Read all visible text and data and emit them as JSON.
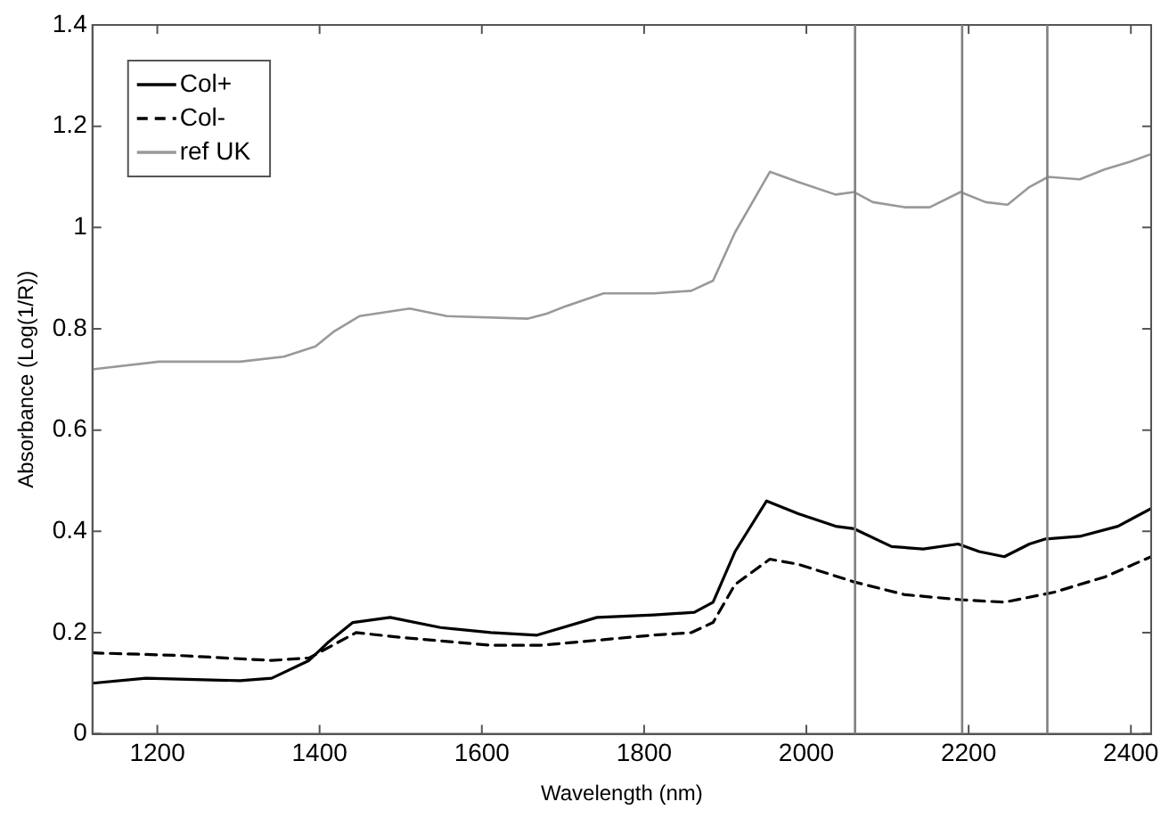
{
  "chart_data": {
    "type": "line",
    "xlabel": "Wavelength (nm)",
    "ylabel": "Absorbance (Log(1/R))",
    "xlim": [
      1120,
      2425
    ],
    "xticks": [
      1200,
      1400,
      1600,
      1800,
      2000,
      2200,
      2400
    ],
    "ylim": [
      0,
      1.4
    ],
    "yticks": [
      0,
      0.2,
      0.4,
      0.6,
      0.8,
      1,
      1.2,
      1.4
    ],
    "grid": false,
    "legend": "top left",
    "marker": "none",
    "series": [
      {
        "name": "Col+",
        "color": "#000000",
        "line_style": "solid",
        "x": [
          1120,
          1186,
          1302,
          1341,
          1387,
          1410,
          1441,
          1487,
          1549,
          1611,
          1668,
          1742,
          1812,
          1862,
          1885,
          1912,
          1951,
          1990,
          2036,
          2059,
          2105,
          2144,
          2187,
          2213,
          2244,
          2275,
          2295,
          2337,
          2384,
          2425
        ],
        "values": [
          0.1,
          0.11,
          0.105,
          0.11,
          0.145,
          0.18,
          0.22,
          0.23,
          0.21,
          0.2,
          0.195,
          0.23,
          0.235,
          0.24,
          0.26,
          0.36,
          0.46,
          0.435,
          0.41,
          0.405,
          0.37,
          0.365,
          0.375,
          0.36,
          0.35,
          0.375,
          0.385,
          0.39,
          0.41,
          0.445
        ]
      },
      {
        "name": "Col-",
        "color": "#000000",
        "line_style": "dashed",
        "x": [
          1120,
          1225,
          1341,
          1387,
          1445,
          1503,
          1611,
          1673,
          1812,
          1858,
          1885,
          1912,
          1955,
          1990,
          2059,
          2121,
          2190,
          2244,
          2306,
          2368,
          2425
        ],
        "values": [
          0.16,
          0.155,
          0.145,
          0.15,
          0.2,
          0.19,
          0.175,
          0.175,
          0.195,
          0.2,
          0.22,
          0.295,
          0.345,
          0.335,
          0.3,
          0.275,
          0.265,
          0.26,
          0.28,
          0.31,
          0.35
        ]
      },
      {
        "name": "ref UK",
        "color": "#999999",
        "line_style": "solid",
        "x": [
          1120,
          1202,
          1302,
          1356,
          1395,
          1418,
          1449,
          1511,
          1557,
          1657,
          1680,
          1704,
          1750,
          1812,
          1858,
          1885,
          1912,
          1955,
          1990,
          2036,
          2059,
          2082,
          2121,
          2152,
          2190,
          2221,
          2248,
          2275,
          2298,
          2337,
          2368,
          2399,
          2425
        ],
        "values": [
          0.72,
          0.735,
          0.735,
          0.745,
          0.765,
          0.795,
          0.825,
          0.84,
          0.825,
          0.82,
          0.83,
          0.845,
          0.87,
          0.87,
          0.875,
          0.895,
          0.99,
          1.11,
          1.09,
          1.065,
          1.07,
          1.05,
          1.04,
          1.04,
          1.07,
          1.05,
          1.045,
          1.08,
          1.1,
          1.095,
          1.115,
          1.13,
          1.145
        ]
      }
    ],
    "ref_lines": [
      {
        "axis": "x",
        "value": 2060,
        "color": "#808080"
      },
      {
        "axis": "x",
        "value": 2192,
        "color": "#808080"
      },
      {
        "axis": "x",
        "value": 2297,
        "color": "#808080"
      }
    ]
  }
}
